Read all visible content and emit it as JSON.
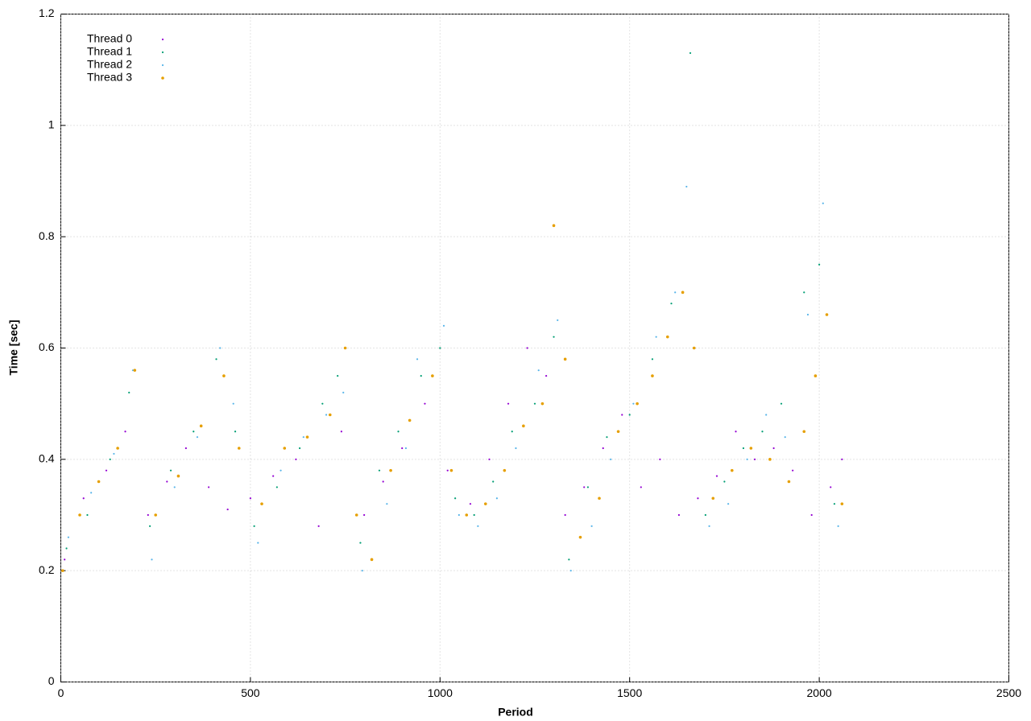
{
  "chart_data": {
    "type": "scatter",
    "xlabel": "Period",
    "ylabel": "Time [sec]",
    "xlim": [
      0,
      2500
    ],
    "xticks": [
      0,
      500,
      1000,
      1500,
      2000,
      2500
    ],
    "ylim": [
      0,
      1.2
    ],
    "yticks": [
      0,
      0.2,
      0.4,
      0.6,
      0.8,
      1,
      1.2
    ],
    "grid": true,
    "legend": "top-left",
    "series": [
      {
        "name": "Thread 0",
        "color": "#9400d3",
        "x": [
          10,
          60,
          120,
          170,
          230,
          280,
          330,
          390,
          440,
          500,
          560,
          620,
          680,
          740,
          800,
          850,
          900,
          960,
          1020,
          1080,
          1130,
          1180,
          1230,
          1280,
          1330,
          1380,
          1430,
          1480,
          1530,
          1580,
          1630,
          1680,
          1730,
          1780,
          1830,
          1880,
          1930,
          1980,
          2030,
          2060
        ],
        "values": [
          0.22,
          0.33,
          0.38,
          0.45,
          0.3,
          0.36,
          0.42,
          0.35,
          0.31,
          0.33,
          0.37,
          0.4,
          0.28,
          0.45,
          0.3,
          0.36,
          0.42,
          0.5,
          0.38,
          0.32,
          0.4,
          0.5,
          0.6,
          0.55,
          0.3,
          0.35,
          0.42,
          0.48,
          0.35,
          0.4,
          0.3,
          0.33,
          0.37,
          0.45,
          0.4,
          0.42,
          0.38,
          0.3,
          0.35,
          0.4
        ]
      },
      {
        "name": "Thread 1",
        "color": "#009e73",
        "x": [
          15,
          70,
          130,
          180,
          235,
          290,
          350,
          410,
          460,
          510,
          570,
          630,
          690,
          730,
          790,
          840,
          890,
          950,
          1000,
          1040,
          1090,
          1140,
          1190,
          1250,
          1300,
          1340,
          1390,
          1440,
          1500,
          1560,
          1610,
          1660,
          1700,
          1750,
          1800,
          1850,
          1900,
          1960,
          2000,
          2040
        ],
        "values": [
          0.24,
          0.3,
          0.4,
          0.52,
          0.28,
          0.38,
          0.45,
          0.58,
          0.45,
          0.28,
          0.35,
          0.42,
          0.5,
          0.55,
          0.25,
          0.38,
          0.45,
          0.55,
          0.6,
          0.33,
          0.3,
          0.36,
          0.45,
          0.5,
          0.62,
          0.22,
          0.35,
          0.44,
          0.48,
          0.58,
          0.68,
          1.13,
          0.3,
          0.36,
          0.42,
          0.45,
          0.5,
          0.7,
          0.75,
          0.32
        ]
      },
      {
        "name": "Thread 2",
        "color": "#56b4e9",
        "x": [
          20,
          80,
          140,
          190,
          240,
          300,
          360,
          420,
          455,
          520,
          580,
          640,
          700,
          745,
          795,
          860,
          910,
          940,
          1010,
          1050,
          1100,
          1150,
          1200,
          1260,
          1310,
          1345,
          1400,
          1450,
          1510,
          1570,
          1620,
          1650,
          1710,
          1760,
          1810,
          1860,
          1910,
          1970,
          2010,
          2050
        ],
        "values": [
          0.26,
          0.34,
          0.41,
          0.56,
          0.22,
          0.35,
          0.44,
          0.6,
          0.5,
          0.25,
          0.38,
          0.44,
          0.48,
          0.52,
          0.2,
          0.32,
          0.42,
          0.58,
          0.64,
          0.3,
          0.28,
          0.33,
          0.42,
          0.56,
          0.65,
          0.2,
          0.28,
          0.4,
          0.5,
          0.62,
          0.7,
          0.89,
          0.28,
          0.32,
          0.4,
          0.48,
          0.44,
          0.66,
          0.86,
          0.28
        ]
      },
      {
        "name": "Thread 3",
        "color": "#e69f00",
        "x": [
          5,
          50,
          100,
          150,
          195,
          250,
          310,
          370,
          430,
          470,
          530,
          590,
          650,
          710,
          750,
          780,
          820,
          870,
          920,
          980,
          1030,
          1070,
          1120,
          1170,
          1220,
          1270,
          1300,
          1330,
          1370,
          1420,
          1470,
          1520,
          1560,
          1600,
          1640,
          1670,
          1720,
          1770,
          1820,
          1870,
          1920,
          1960,
          1990,
          2020,
          2060
        ],
        "values": [
          0.2,
          0.3,
          0.36,
          0.42,
          0.56,
          0.3,
          0.37,
          0.46,
          0.55,
          0.42,
          0.32,
          0.42,
          0.44,
          0.48,
          0.6,
          0.3,
          0.22,
          0.38,
          0.47,
          0.55,
          0.38,
          0.3,
          0.32,
          0.38,
          0.46,
          0.5,
          0.82,
          0.58,
          0.26,
          0.33,
          0.45,
          0.5,
          0.55,
          0.62,
          0.7,
          0.6,
          0.33,
          0.38,
          0.42,
          0.4,
          0.36,
          0.45,
          0.55,
          0.66,
          0.32
        ]
      }
    ]
  }
}
